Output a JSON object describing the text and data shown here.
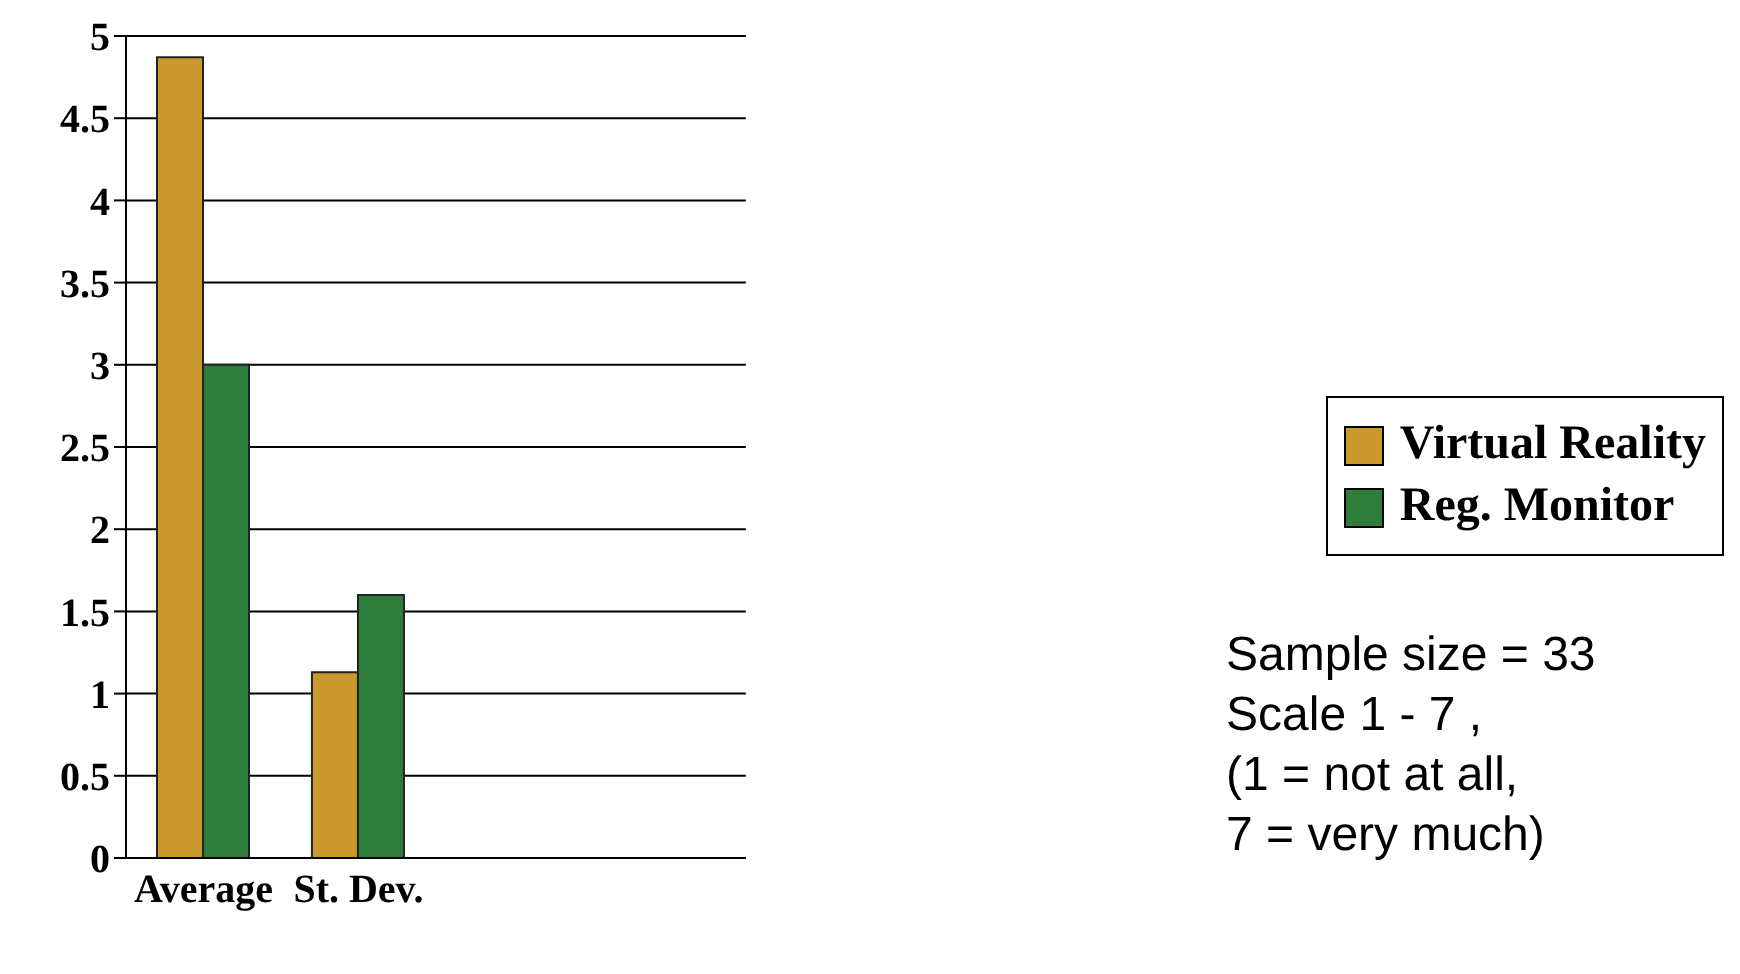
{
  "chart_data": {
    "type": "bar",
    "categories": [
      "Average",
      "St. Dev.",
      null,
      null
    ],
    "series": [
      {
        "name": "Virtual Reality",
        "color": "#c9992e",
        "values": [
          4.87,
          1.13,
          null,
          null
        ]
      },
      {
        "name": "Reg. Monitor",
        "color": "#2e7d3a",
        "values": [
          3.0,
          1.6,
          null,
          null
        ]
      }
    ],
    "ylim": [
      0,
      5
    ],
    "yticks": [
      0,
      0.5,
      1,
      1.5,
      2,
      2.5,
      3,
      3.5,
      4,
      4.5,
      5
    ],
    "grid": "y",
    "legend": "right",
    "annotations": [
      "Sample size = 33",
      "Scale 1 - 7 ,",
      "(1 = not at all,",
      "7 = very much)"
    ]
  }
}
